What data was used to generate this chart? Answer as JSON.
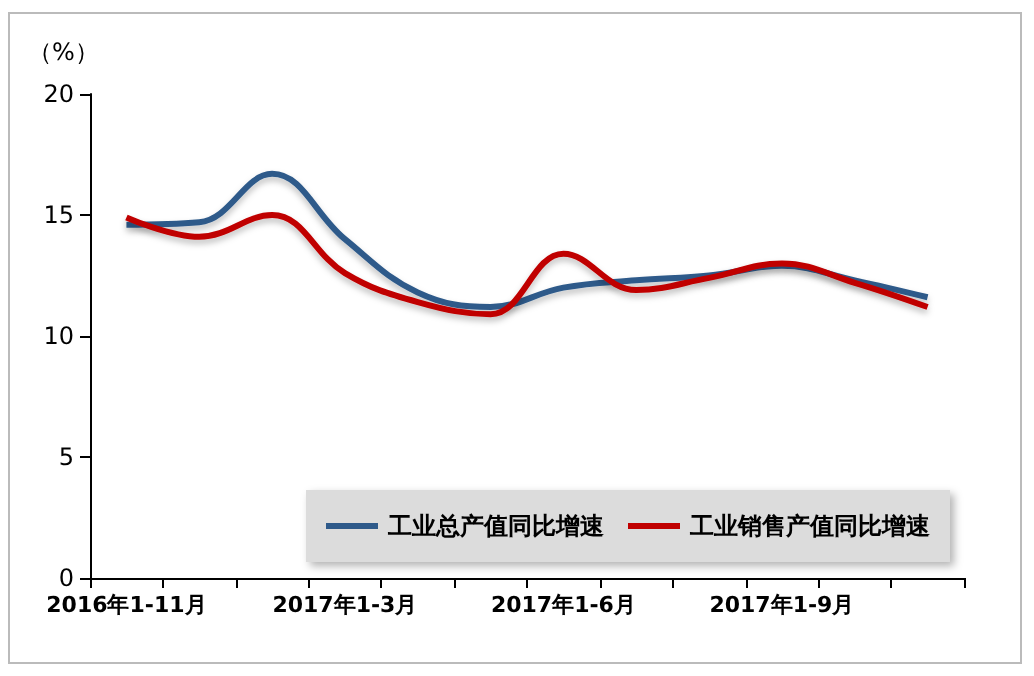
{
  "chart_data": {
    "type": "line",
    "ylabel": "（%）",
    "categories": [
      "2016年1-11月",
      null,
      null,
      "2017年1-3月",
      null,
      null,
      "2017年1-6月",
      null,
      null,
      "2017年1-9月",
      null,
      null
    ],
    "series": [
      {
        "name": "工业总产值同比增速",
        "color": "#2e5a8a",
        "values": [
          14.6,
          14.7,
          16.7,
          14.0,
          11.8,
          11.2,
          12.0,
          12.3,
          12.5,
          12.9,
          12.3,
          11.6
        ]
      },
      {
        "name": "工业销售产值同比增速",
        "color": "#c00000",
        "values": [
          14.9,
          14.1,
          15.0,
          12.6,
          11.4,
          10.9,
          13.4,
          11.9,
          12.4,
          13.0,
          12.2,
          11.2
        ]
      }
    ],
    "ylim": [
      0,
      20
    ],
    "yticks": [
      0,
      5,
      10,
      15,
      20
    ],
    "grid": false,
    "legend": "bottom right",
    "marker": "none",
    "line_style": "solid"
  }
}
